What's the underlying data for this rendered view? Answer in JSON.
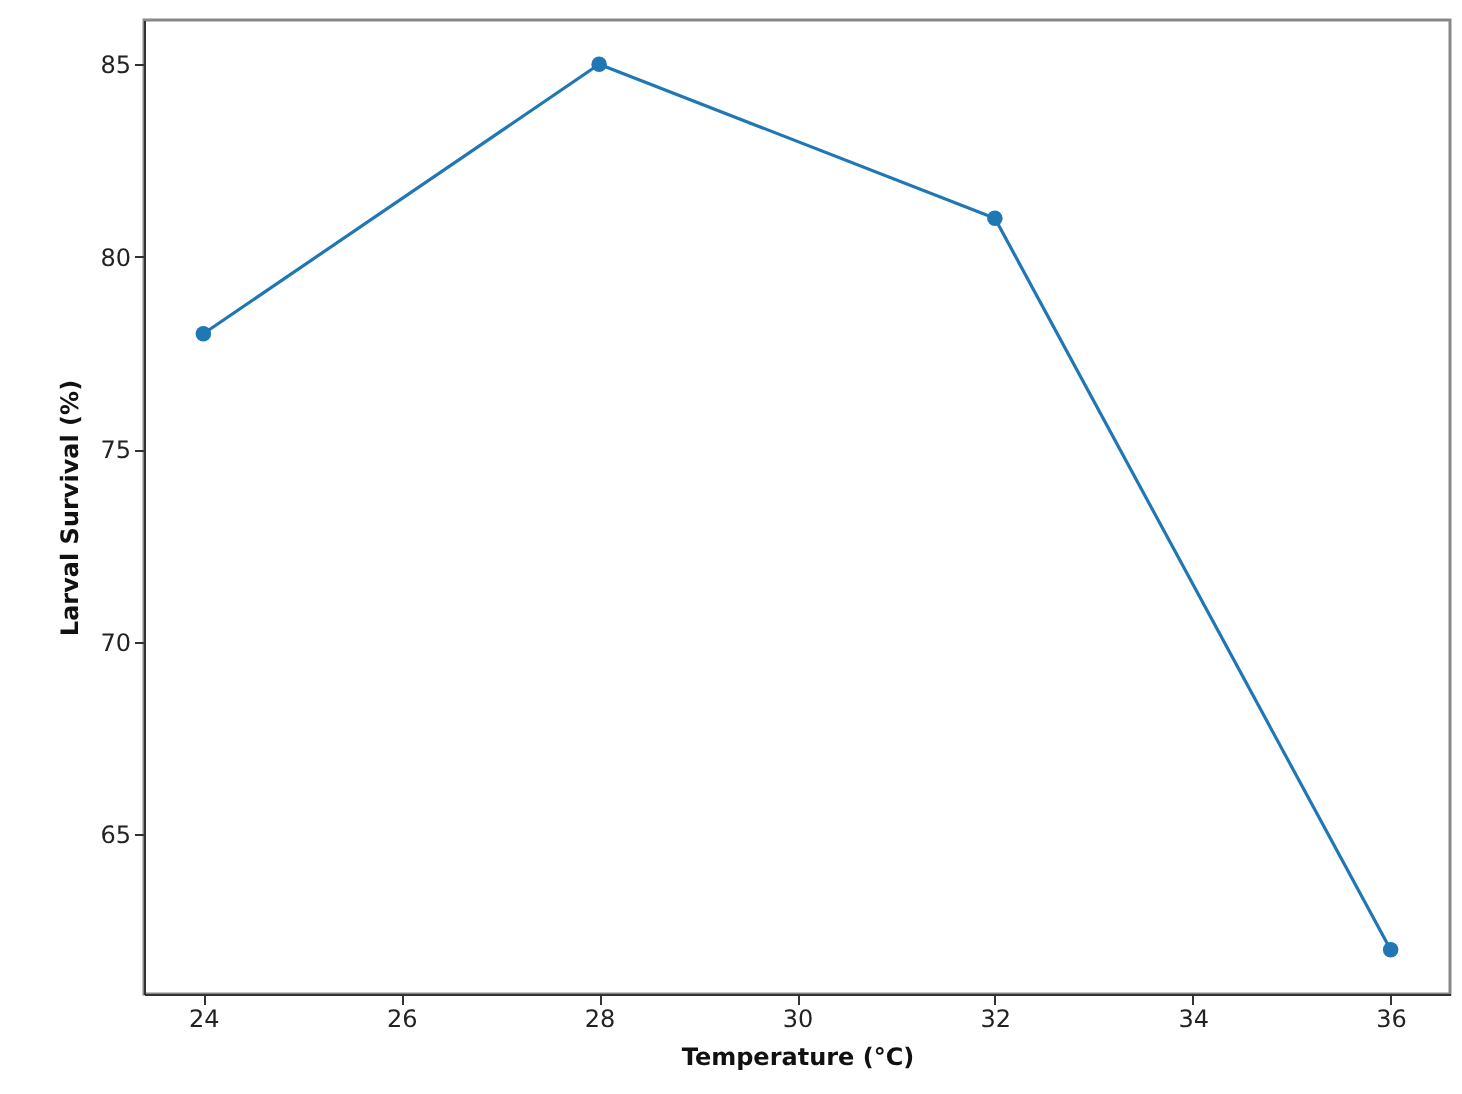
{
  "chart_data": {
    "type": "line",
    "xlabel": "Temperature (°C)",
    "ylabel": "Larval Survival (%)",
    "x": [
      24,
      28,
      32,
      36
    ],
    "series": [
      {
        "color": "#1f77b4",
        "values": [
          78,
          85,
          81,
          62
        ]
      }
    ],
    "xlim": [
      23.4,
      36.6
    ],
    "xticks": [
      24,
      26,
      28,
      30,
      32,
      34,
      36
    ],
    "ylim": [
      60.85,
      86.15
    ],
    "yticks": [
      65,
      70,
      75,
      80,
      85
    ],
    "grid": false,
    "marker": "circle",
    "line_style": "solid"
  }
}
